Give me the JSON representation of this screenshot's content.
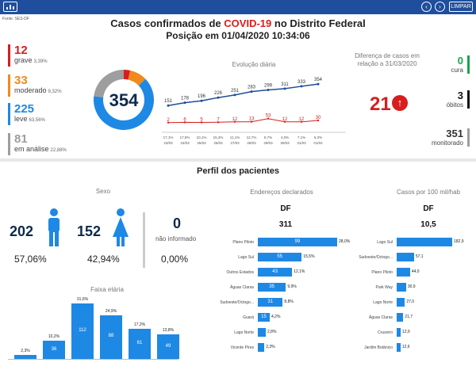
{
  "header": {
    "source": "Fonte: SES-DF",
    "title_prefix": "Casos confirmados de",
    "title_highlight": "COVID-19",
    "title_suffix": "no Distrito Federal",
    "subtitle": "Posição em 01/04/2020 10:34:06",
    "clear_label": "LIMPAR",
    "back_icon": "back-arrow-icon",
    "forward_icon": "forward-arrow-icon",
    "colors": {
      "bar": "#1f4e9c",
      "accent_red": "#e01b1b"
    }
  },
  "severity": [
    {
      "num": "12",
      "label": "grave",
      "pct": "3,39%",
      "color": "#d71e1e"
    },
    {
      "num": "33",
      "label": "moderado",
      "pct": "9,32%",
      "color": "#f08a1c"
    },
    {
      "num": "225",
      "label": "leve",
      "pct": "63,56%",
      "color": "#1e88e5"
    },
    {
      "num": "81",
      "label": "em análise",
      "pct": "22,88%",
      "color": "#9e9e9e"
    }
  ],
  "donut": {
    "total": "354",
    "segments": [
      3.39,
      9.32,
      63.56,
      22.88
    ]
  },
  "daily": {
    "title": "Evolução diária",
    "top": [
      "151",
      "178",
      "196",
      "226",
      "251",
      "283",
      "299",
      "311",
      "333",
      "354"
    ],
    "top_values": [
      151,
      178,
      196,
      226,
      251,
      283,
      299,
      311,
      333,
      354
    ],
    "bottom": [
      "2",
      "6",
      "5",
      "7",
      "12",
      "13",
      "53",
      "12",
      "12",
      "30"
    ],
    "bottom_values": [
      2,
      6,
      5,
      7,
      12,
      13,
      53,
      12,
      12,
      30
    ],
    "pcts": [
      "17,1%",
      "17,9%",
      "10,1%",
      "15,3%",
      "11,1%",
      "12,7%",
      "5,7%",
      "4,0%",
      "7,1%",
      "6,3%"
    ],
    "dates": [
      "23/03",
      "24/03",
      "25/03",
      "26/03",
      "27/03",
      "28/03",
      "29/03",
      "30/03",
      "31/03",
      "01/04"
    ]
  },
  "diff": {
    "title": "Diferença de casos em relação a 31/03/2020",
    "value": "21",
    "cura_num": "0",
    "cura_label": "cura",
    "obitos_num": "3",
    "obitos_label": "óbitos",
    "monit_num": "351",
    "monit_label": "monitorado"
  },
  "perfil": {
    "title": "Perfil dos pacientes",
    "sex_title": "Sexo",
    "male_num": "202",
    "male_pct": "57,06%",
    "female_num": "152",
    "female_pct": "42,94%",
    "unk_num": "0",
    "unk_label": "não informado",
    "unk_pct": "0,00%"
  },
  "age": {
    "title": "Faixa etária",
    "values": [
      "",
      "36",
      "112",
      "88",
      "61",
      "49"
    ],
    "pcts": [
      "2,3%",
      "10,2%",
      "31,6%",
      "24,9%",
      "17,2%",
      "13,8%"
    ],
    "pct_values": [
      2.3,
      10.2,
      31.6,
      24.9,
      17.2,
      13.8
    ]
  },
  "address": {
    "title": "Endereços declarados",
    "region": "DF",
    "total": "311",
    "labels": [
      "Plano Piloto",
      "Lago Sul",
      "Outros Estados",
      "Águas Claras",
      "Sudoeste/Octogo...",
      "Guará",
      "Lago Norte",
      "Vicente Pires"
    ],
    "values": [
      "99",
      "55",
      "43",
      "35",
      "31",
      "15",
      "",
      ""
    ],
    "pcts": [
      "28,0%",
      "15,5%",
      "12,1%",
      "9,9%",
      "8,8%",
      "4,2%",
      "2,8%",
      "2,3%"
    ],
    "pct_values": [
      28.0,
      15.5,
      12.1,
      9.9,
      8.8,
      4.2,
      2.8,
      2.3
    ]
  },
  "rate": {
    "title": "Casos por 100 mil/hab",
    "region": "DF",
    "total": "10,5",
    "labels": [
      "Lago Sul",
      "Sudoeste/Octogo...",
      "Plano Piloto",
      "Park Way",
      "Lago Norte",
      "Águas Claras",
      "Cruzeiro",
      "Jardim Botânico"
    ],
    "values": [
      "182,9",
      "57,1",
      "44,0",
      "30,9",
      "27,0",
      "21,7",
      "12,9",
      "12,6"
    ],
    "num_values": [
      182.9,
      57.1,
      44.0,
      30.9,
      27.0,
      21.7,
      12.9,
      12.6
    ]
  }
}
